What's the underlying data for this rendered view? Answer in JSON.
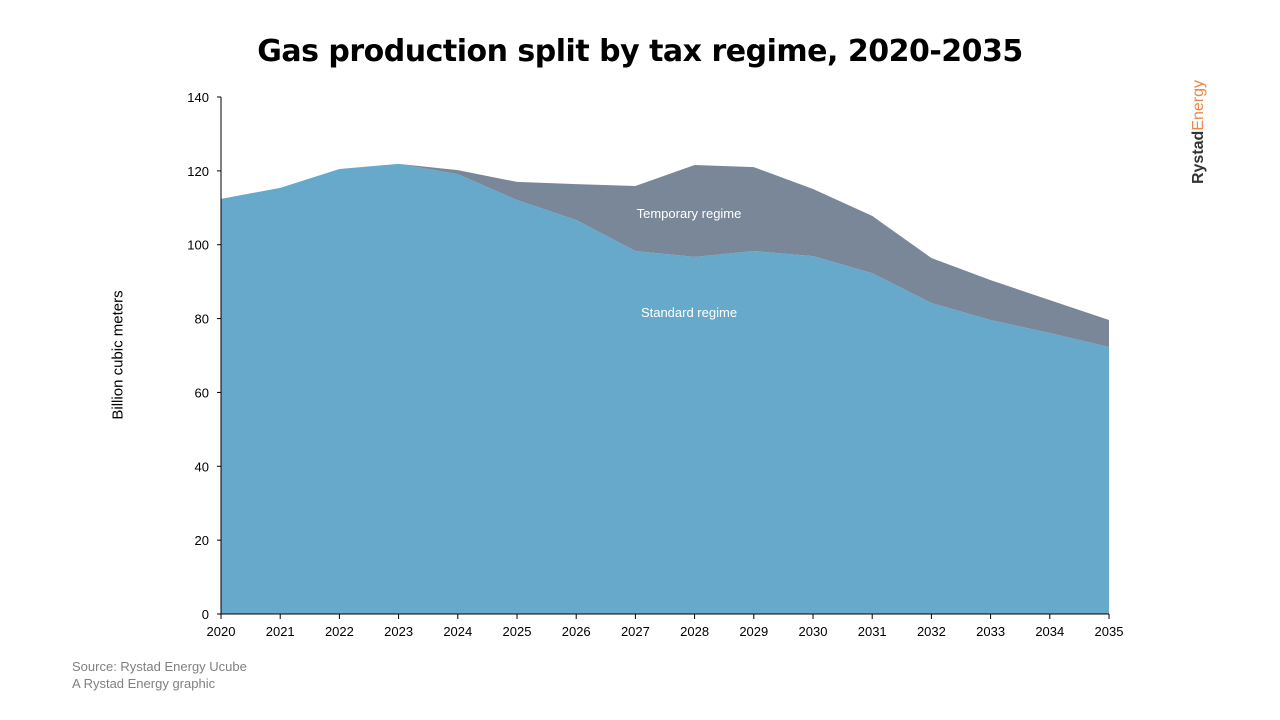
{
  "chart_data": {
    "type": "area",
    "stacked": true,
    "title": "Gas production split by tax regime, 2020-2035",
    "xlabel": "",
    "ylabel": "Billion cubic meters",
    "ylim": [
      0,
      140
    ],
    "yticks": [
      0,
      20,
      40,
      60,
      80,
      100,
      120,
      140
    ],
    "x": [
      2020,
      2021,
      2022,
      2023,
      2024,
      2025,
      2026,
      2027,
      2028,
      2029,
      2030,
      2031,
      2032,
      2033,
      2034,
      2035
    ],
    "grid": false,
    "series": [
      {
        "name": "Standard regime",
        "color": "#67a9cb",
        "values": [
          112.4,
          115.4,
          120.5,
          121.9,
          119.1,
          112.1,
          106.7,
          98.3,
          96.7,
          98.3,
          96.9,
          92.3,
          84.2,
          79.6,
          76.1,
          72.3
        ]
      },
      {
        "name": "Temporary regime",
        "color": "#7a8798",
        "values": [
          0,
          0,
          0,
          0,
          1.1,
          4.9,
          9.7,
          17.6,
          24.9,
          22.7,
          18.2,
          15.5,
          12.2,
          10.8,
          8.9,
          7.3
        ]
      }
    ],
    "annotations": [
      "Temporary regime",
      "Standard regime"
    ]
  },
  "source": {
    "line1": "Source: Rystad Energy Ucube",
    "line2": "A Rystad Energy graphic"
  },
  "logo": {
    "part1": "Rystad",
    "part2": "Energy"
  }
}
